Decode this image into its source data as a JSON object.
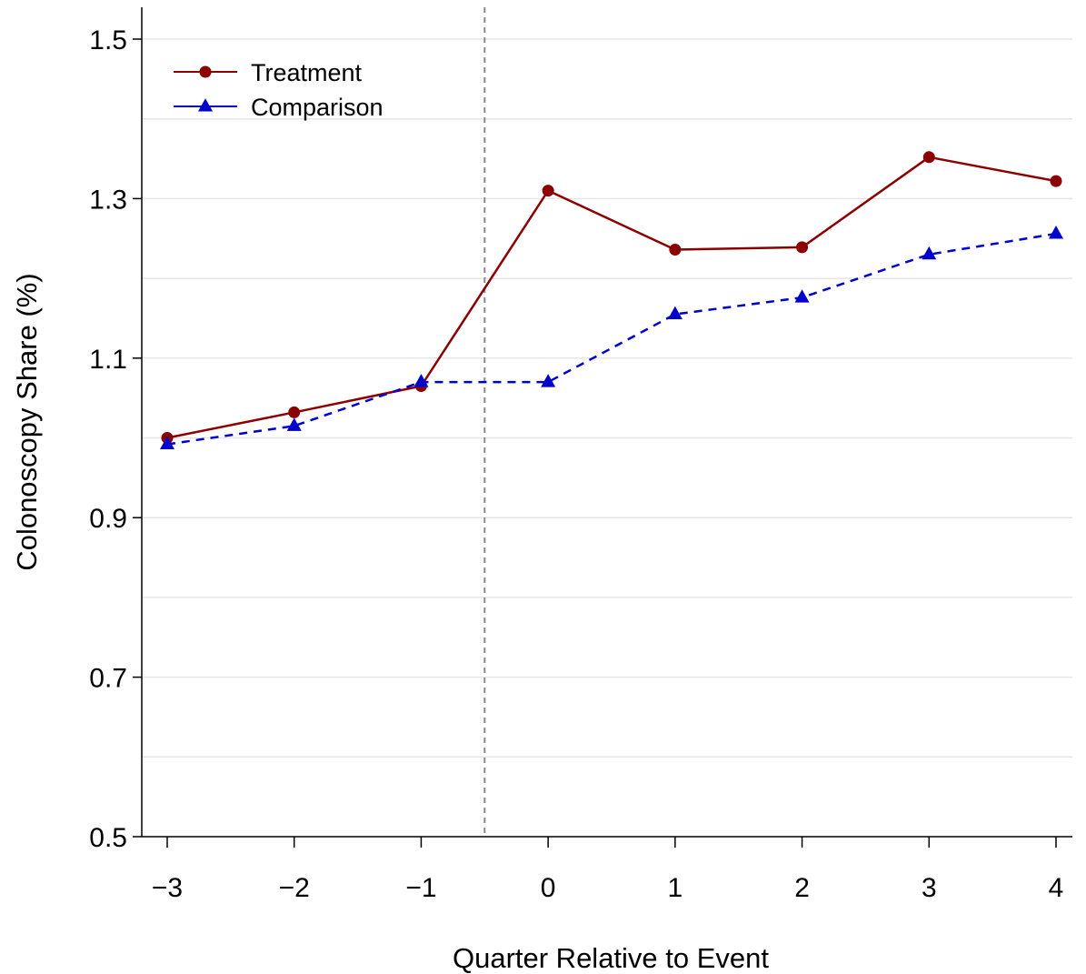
{
  "chart_data": {
    "type": "line",
    "title": "",
    "xlabel": "Quarter Relative to Event",
    "ylabel": "Colonoscopy Share (%)",
    "x": [
      -3,
      -2,
      -1,
      0,
      1,
      2,
      3,
      4
    ],
    "x_tick_labels": [
      "−3",
      "−2",
      "−1",
      "0",
      "1",
      "2",
      "3",
      "4"
    ],
    "y_ticks": [
      0.5,
      0.7,
      0.9,
      1.1,
      1.3,
      1.5
    ],
    "y_tick_labels": [
      "0.5",
      "0.7",
      "0.9",
      "1.1",
      "1.3",
      "1.5"
    ],
    "ylim": [
      0.5,
      1.5
    ],
    "xlim": [
      -3,
      4
    ],
    "grid": "horizontal",
    "reference_line_x": -0.5,
    "legend_position": "top-left",
    "series": [
      {
        "name": "Treatment",
        "color": "#8b0000",
        "marker": "circle",
        "line_style": "solid",
        "values": [
          1.0,
          1.032,
          1.065,
          1.31,
          1.236,
          1.239,
          1.352,
          1.322
        ]
      },
      {
        "name": "Comparison",
        "color": "#0000cd",
        "marker": "triangle",
        "line_style": "dashed",
        "values": [
          0.992,
          1.015,
          1.07,
          1.07,
          1.155,
          1.176,
          1.23,
          1.256
        ]
      }
    ]
  }
}
